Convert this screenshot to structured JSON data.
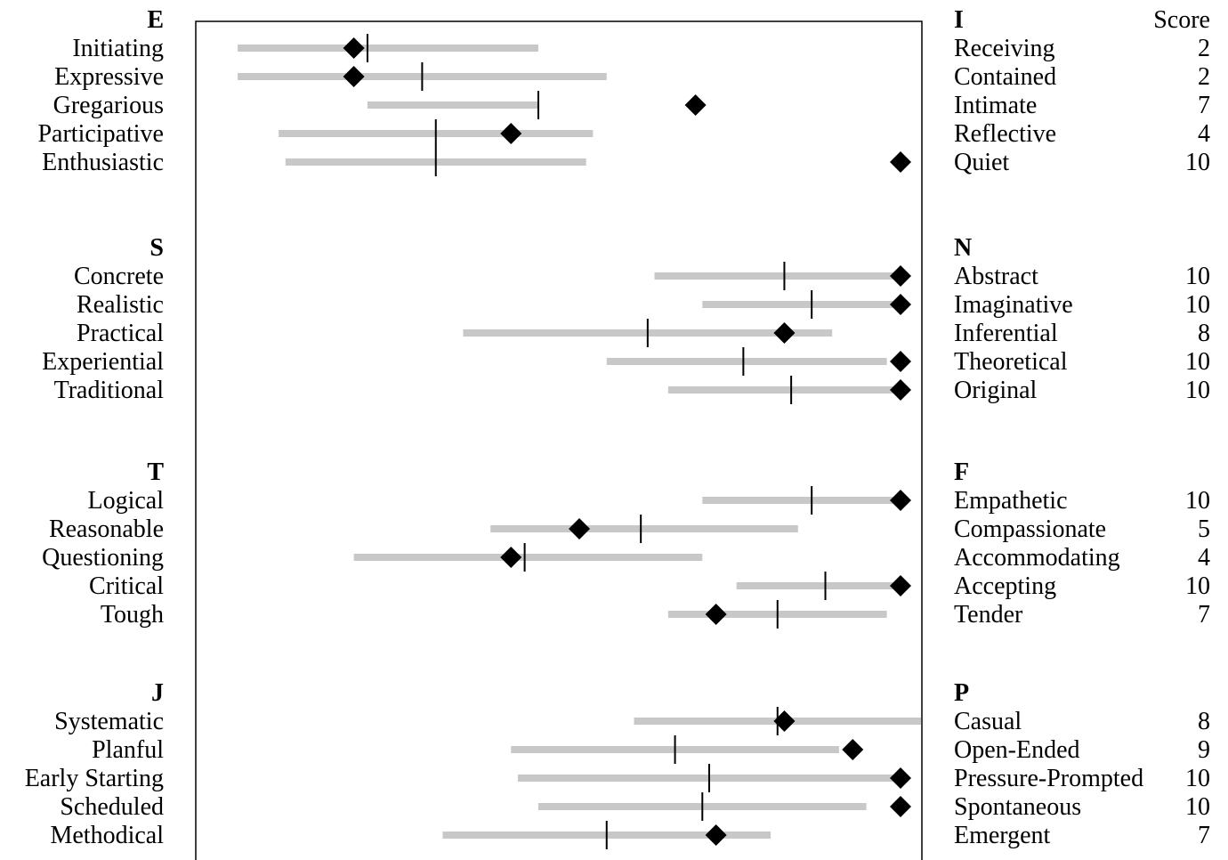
{
  "chart_data": {
    "type": "dot-range",
    "score_header": "Score",
    "x_range": [
      0,
      10
    ],
    "groups": [
      {
        "left_pole": "E",
        "right_pole": "I",
        "rows": [
          {
            "left": "Initiating",
            "right": "Receiving",
            "score": 2,
            "marker": 2.0,
            "range": [
              0.3,
              4.7
            ],
            "median": 2.2
          },
          {
            "left": "Expressive",
            "right": "Contained",
            "score": 2,
            "marker": 2.0,
            "range": [
              0.3,
              5.7
            ],
            "median": 3.0
          },
          {
            "left": "Gregarious",
            "right": "Intimate",
            "score": 7,
            "marker": 7.0,
            "range": [
              2.2,
              4.7
            ],
            "median": 4.7
          },
          {
            "left": "Participative",
            "right": "Reflective",
            "score": 4,
            "marker": 4.3,
            "range": [
              0.9,
              5.5
            ],
            "median": 3.2
          },
          {
            "left": "Enthusiastic",
            "right": "Quiet",
            "score": 10,
            "marker": 10.0,
            "range": [
              1.0,
              5.4
            ],
            "median": 3.2
          }
        ]
      },
      {
        "left_pole": "S",
        "right_pole": "N",
        "rows": [
          {
            "left": "Concrete",
            "right": "Abstract",
            "score": 10,
            "marker": 10.0,
            "range": [
              6.4,
              10.0
            ],
            "median": 8.3
          },
          {
            "left": "Realistic",
            "right": "Imaginative",
            "score": 10,
            "marker": 10.0,
            "range": [
              7.1,
              10.0
            ],
            "median": 8.7
          },
          {
            "left": "Practical",
            "right": "Inferential",
            "score": 8,
            "marker": 8.3,
            "range": [
              3.6,
              9.0
            ],
            "median": 6.3
          },
          {
            "left": "Experiential",
            "right": "Theoretical",
            "score": 10,
            "marker": 10.0,
            "range": [
              5.7,
              9.8
            ],
            "median": 7.7
          },
          {
            "left": "Traditional",
            "right": "Original",
            "score": 10,
            "marker": 10.0,
            "range": [
              6.6,
              10.0
            ],
            "median": 8.4
          }
        ]
      },
      {
        "left_pole": "T",
        "right_pole": "F",
        "rows": [
          {
            "left": "Logical",
            "right": "Empathetic",
            "score": 10,
            "marker": 10.0,
            "range": [
              7.1,
              10.0
            ],
            "median": 8.7
          },
          {
            "left": "Reasonable",
            "right": "Compassionate",
            "score": 5,
            "marker": 5.3,
            "range": [
              4.0,
              8.5
            ],
            "median": 6.2
          },
          {
            "left": "Questioning",
            "right": "Accommodating",
            "score": 4,
            "marker": 4.3,
            "range": [
              2.0,
              7.1
            ],
            "median": 4.5
          },
          {
            "left": "Critical",
            "right": "Accepting",
            "score": 10,
            "marker": 10.0,
            "range": [
              7.6,
              10.0
            ],
            "median": 8.9
          },
          {
            "left": "Tough",
            "right": "Tender",
            "score": 7,
            "marker": 7.3,
            "range": [
              6.6,
              9.8
            ],
            "median": 8.2
          }
        ]
      },
      {
        "left_pole": "J",
        "right_pole": "P",
        "rows": [
          {
            "left": "Systematic",
            "right": "Casual",
            "score": 8,
            "marker": 8.3,
            "range": [
              6.1,
              10.3
            ],
            "median": 8.2
          },
          {
            "left": "Planful",
            "right": "Open-Ended",
            "score": 9,
            "marker": 9.3,
            "range": [
              4.3,
              9.1
            ],
            "median": 6.7
          },
          {
            "left": "Early Starting",
            "right": "Pressure-Prompted",
            "score": 10,
            "marker": 10.0,
            "range": [
              4.4,
              10.0
            ],
            "median": 7.2
          },
          {
            "left": "Scheduled",
            "right": "Spontaneous",
            "score": 10,
            "marker": 10.0,
            "range": [
              4.7,
              9.5
            ],
            "median": 7.1
          },
          {
            "left": "Methodical",
            "right": "Emergent",
            "score": 7,
            "marker": 7.3,
            "range": [
              3.3,
              8.1
            ],
            "median": 5.7
          }
        ]
      }
    ],
    "colors": {
      "range_bar": "#c8c8c8",
      "marker": "#000000",
      "median": "#000000",
      "frame": "#000000"
    }
  }
}
